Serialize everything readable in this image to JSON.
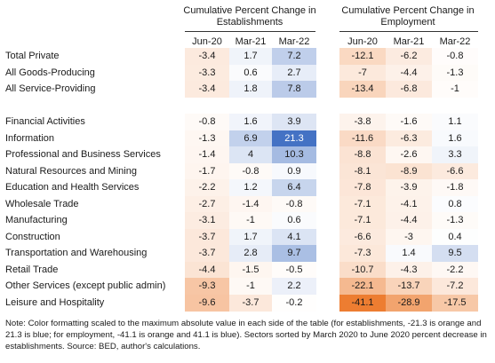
{
  "header": {
    "establishments_title": "Cumulative Percent Change in Establishments",
    "employment_title": "Cumulative Percent Change in Employment",
    "columns": [
      "Jun-20",
      "Mar-21",
      "Mar-22"
    ]
  },
  "chart_data": {
    "type": "table",
    "groups": [
      "Cumulative Percent Change in Establishments",
      "Cumulative Percent Change in Employment"
    ],
    "columns": [
      "Jun-20",
      "Mar-21",
      "Mar-22"
    ],
    "color_scale": {
      "establishments_max_abs": 21.3,
      "employment_max_abs": 41.1,
      "negative_color": "#ED7D31",
      "positive_color": "#4472C4"
    },
    "rows": [
      {
        "label": "Total Private",
        "establishments": [
          "-3.4",
          "1.7",
          "7.2"
        ],
        "employment": [
          "-12.1",
          "-6.2",
          "-0.8"
        ]
      },
      {
        "label": "All Goods-Producing",
        "establishments": [
          "-3.3",
          "0.6",
          "2.7"
        ],
        "employment": [
          "-7",
          "-4.4",
          "-1.3"
        ]
      },
      {
        "label": "All Service-Providing",
        "establishments": [
          "-3.4",
          "1.8",
          "7.8"
        ],
        "employment": [
          "-13.4",
          "-6.8",
          "-1"
        ]
      },
      {
        "label": "",
        "establishments": [
          "",
          "",
          ""
        ],
        "employment": [
          "",
          "",
          ""
        ]
      },
      {
        "label": "Financial Activities",
        "establishments": [
          "-0.8",
          "1.6",
          "3.9"
        ],
        "employment": [
          "-3.8",
          "-1.6",
          "1.1"
        ]
      },
      {
        "label": "Information",
        "establishments": [
          "-1.3",
          "6.9",
          "21.3"
        ],
        "employment": [
          "-11.6",
          "-6.3",
          "1.6"
        ]
      },
      {
        "label": "Professional and Business Services",
        "establishments": [
          "-1.4",
          "4",
          "10.3"
        ],
        "employment": [
          "-8.8",
          "-2.6",
          "3.3"
        ]
      },
      {
        "label": "Natural Resources and Mining",
        "establishments": [
          "-1.7",
          "-0.8",
          "0.9"
        ],
        "employment": [
          "-8.1",
          "-8.9",
          "-6.6"
        ]
      },
      {
        "label": "Education and Health Services",
        "establishments": [
          "-2.2",
          "1.2",
          "6.4"
        ],
        "employment": [
          "-7.8",
          "-3.9",
          "-1.8"
        ]
      },
      {
        "label": "Wholesale Trade",
        "establishments": [
          "-2.7",
          "-1.4",
          "-0.8"
        ],
        "employment": [
          "-7.1",
          "-4.1",
          "0.8"
        ]
      },
      {
        "label": "Manufacturing",
        "establishments": [
          "-3.1",
          "-1",
          "0.6"
        ],
        "employment": [
          "-7.1",
          "-4.4",
          "-1.3"
        ]
      },
      {
        "label": "Construction",
        "establishments": [
          "-3.7",
          "1.7",
          "4.1"
        ],
        "employment": [
          "-6.6",
          "-3",
          "0.4"
        ]
      },
      {
        "label": "Transportation and Warehousing",
        "establishments": [
          "-3.7",
          "2.8",
          "9.7"
        ],
        "employment": [
          "-7.3",
          "1.4",
          "9.5"
        ]
      },
      {
        "label": "Retail Trade",
        "establishments": [
          "-4.4",
          "-1.5",
          "-0.5"
        ],
        "employment": [
          "-10.7",
          "-4.3",
          "-2.2"
        ]
      },
      {
        "label": "Other Services (except public admin)",
        "establishments": [
          "-9.3",
          "-1",
          "2.2"
        ],
        "employment": [
          "-22.1",
          "-13.7",
          "-7.2"
        ]
      },
      {
        "label": "Leisure and Hospitality",
        "establishments": [
          "-9.6",
          "-3.7",
          "-0.2"
        ],
        "employment": [
          "-41.1",
          "-28.9",
          "-17.5"
        ]
      }
    ]
  },
  "note": "Note: Color formatting scaled to the maximum absolute value in each side of the table (for establishments, -21.3 is orange and 21.3 is blue; for employment, -41.1 is orange and 41.1 is blue). Sectors sorted by March 2020 to June 2020 percent decrease in establishments. Source: BED, author's calculations."
}
